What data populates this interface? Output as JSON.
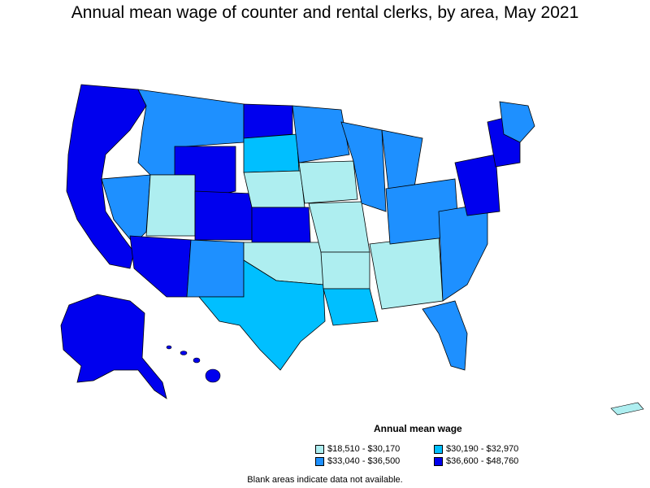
{
  "title": "Annual mean wage of counter and rental clerks, by area, May 2021",
  "legend": {
    "title": "Annual mean wage",
    "items": [
      {
        "label": "$18,510 - $30,170",
        "color": "#aeeef0"
      },
      {
        "label": "$30,190 - $32,970",
        "color": "#00bfff"
      },
      {
        "label": "$33,040 - $36,500",
        "color": "#1e90ff"
      },
      {
        "label": "$36,600 - $48,760",
        "color": "#0000ee"
      }
    ]
  },
  "footnote": "Blank areas indicate data not available."
}
